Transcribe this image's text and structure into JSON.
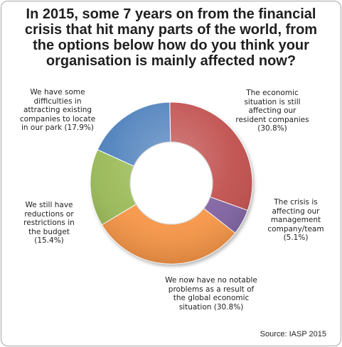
{
  "chart_data": {
    "type": "pie",
    "donut": true,
    "title": "In 2015, some 7 years on from the financial crisis that hit many parts of the world, from the options below how do you think your organisation is mainly affected now?",
    "source": "Source: IASP 2015",
    "slices": [
      {
        "label": "The economic\nsituation is still\naffecting our\nresident companies\n(30.8%)",
        "value": 30.8,
        "color": "#c0504d"
      },
      {
        "label": "The crisis is\naffecting our\nmanagement\ncompany/team\n(5.1%)",
        "value": 5.1,
        "color": "#8064a2"
      },
      {
        "label": "We now have no notable\nproblems as a result of\nthe global economic\nsituation (30.8%)",
        "value": 30.8,
        "color": "#f79646"
      },
      {
        "label": "We still have\nreductions or\nrestrictions in\nthe budget\n(15.4%)",
        "value": 15.4,
        "color": "#9bbb59"
      },
      {
        "label": "We have some\ndifficulties in\nattracting existing\ncompanies to locate\nin our park (17.9%)",
        "value": 17.9,
        "color": "#4f81bd"
      }
    ]
  }
}
